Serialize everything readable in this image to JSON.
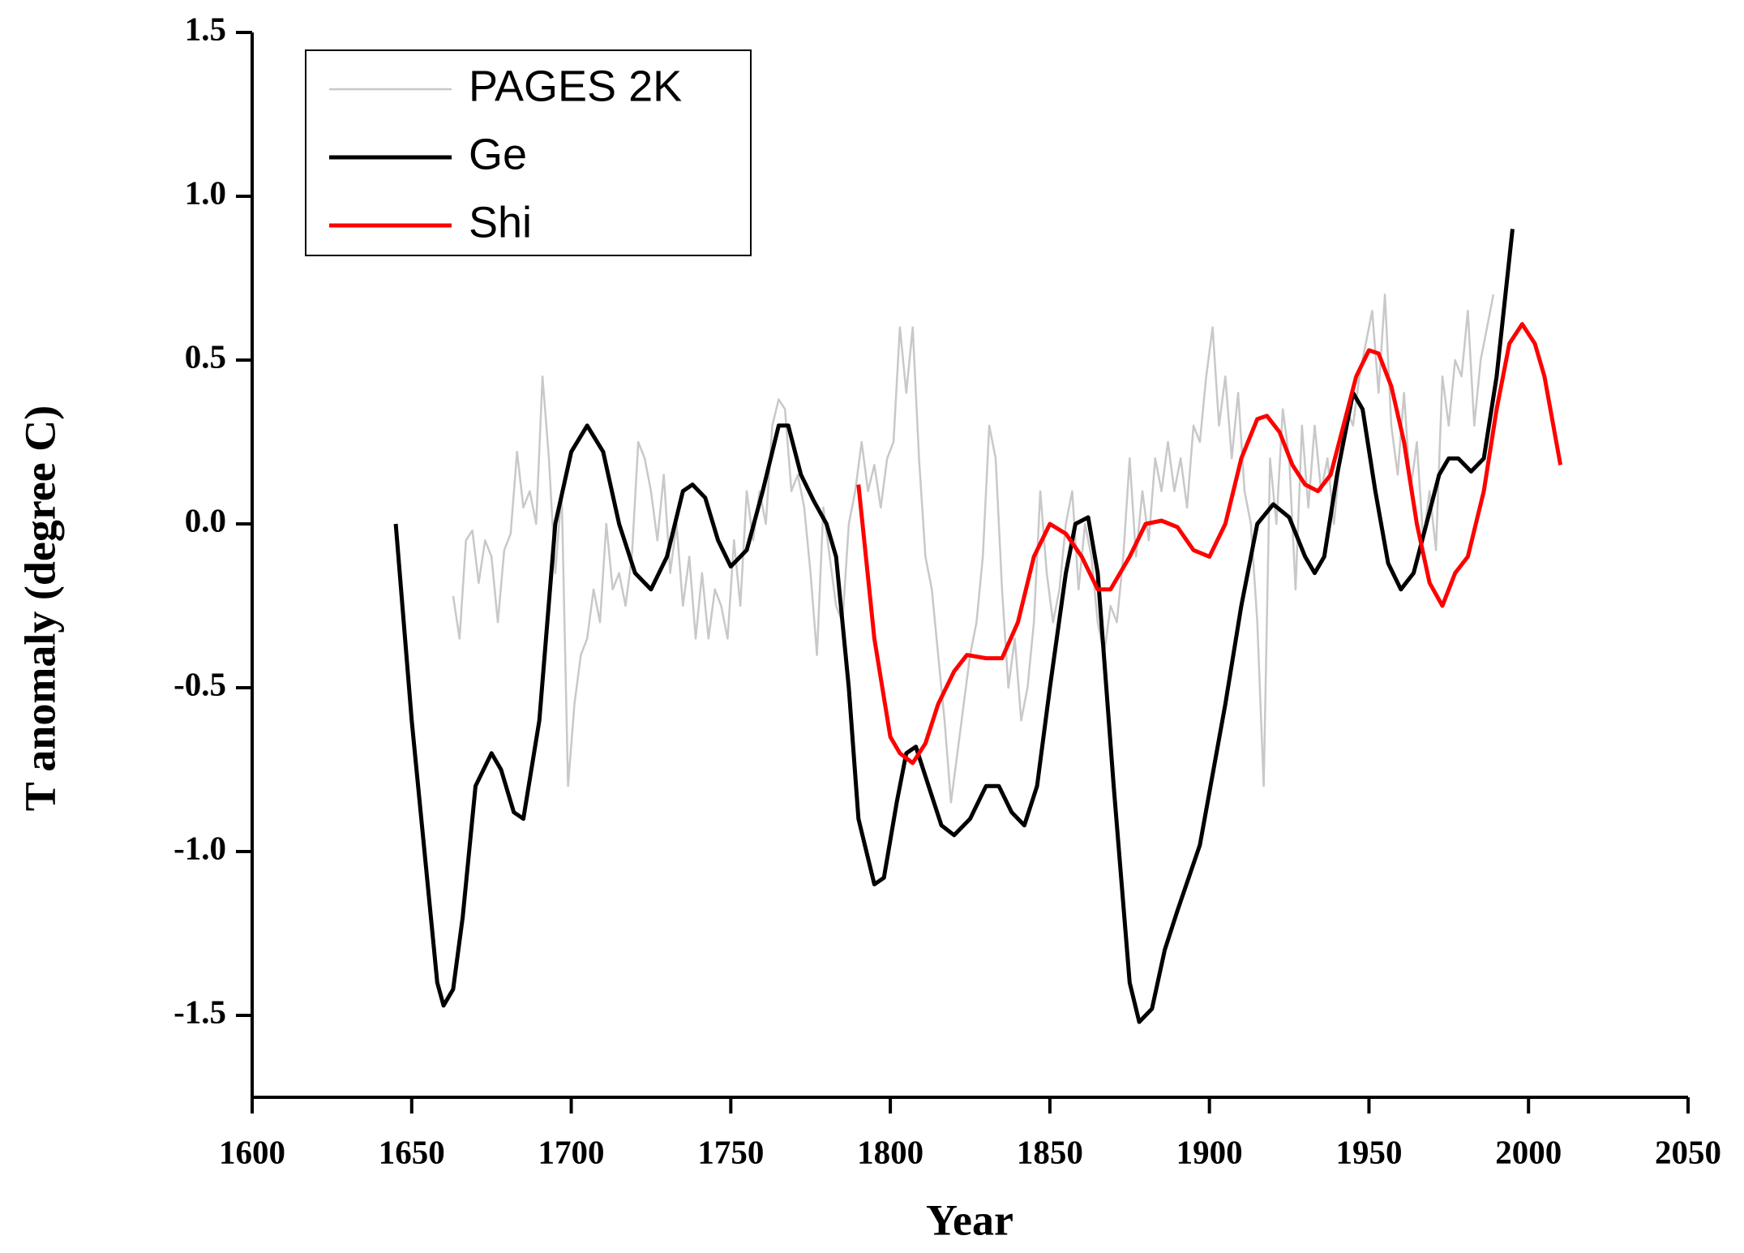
{
  "chart_data": {
    "type": "line",
    "xlabel": "Year",
    "ylabel": "T anomaly (degree C)",
    "xlim": [
      1600,
      2050
    ],
    "xticks": [
      1600,
      1650,
      1700,
      1750,
      1800,
      1850,
      1900,
      1950,
      2000,
      2050
    ],
    "ylim": [
      -1.75,
      1.5
    ],
    "yticks": [
      1.5,
      {
        "value": 1,
        "label": "1.0"
      },
      0.5,
      {
        "value": 0,
        "label": "0.0"
      },
      -0.5,
      {
        "value": -1,
        "label": "-1.0"
      },
      -1.5
    ],
    "legend": "upper left",
    "grid": false,
    "series": [
      {
        "name": "PAGES 2K",
        "color": "#c8c8c8",
        "x": [
          1663,
          1665,
          1667,
          1669,
          1671,
          1673,
          1675,
          1677,
          1679,
          1681,
          1683,
          1685,
          1687,
          1689,
          1691,
          1693,
          1695,
          1697,
          1699,
          1701,
          1703,
          1705,
          1707,
          1709,
          1711,
          1713,
          1715,
          1717,
          1719,
          1721,
          1723,
          1725,
          1727,
          1729,
          1731,
          1733,
          1735,
          1737,
          1739,
          1741,
          1743,
          1745,
          1747,
          1749,
          1751,
          1753,
          1755,
          1757,
          1759,
          1761,
          1763,
          1765,
          1767,
          1769,
          1771,
          1773,
          1775,
          1777,
          1779,
          1781,
          1783,
          1785,
          1787,
          1789,
          1791,
          1793,
          1795,
          1797,
          1799,
          1801,
          1803,
          1805,
          1807,
          1809,
          1811,
          1813,
          1815,
          1817,
          1819,
          1821,
          1823,
          1825,
          1827,
          1829,
          1831,
          1833,
          1835,
          1837,
          1839,
          1841,
          1843,
          1845,
          1847,
          1849,
          1851,
          1853,
          1855,
          1857,
          1859,
          1861,
          1863,
          1865,
          1867,
          1869,
          1871,
          1873,
          1875,
          1877,
          1879,
          1881,
          1883,
          1885,
          1887,
          1889,
          1891,
          1893,
          1895,
          1897,
          1899,
          1901,
          1903,
          1905,
          1907,
          1909,
          1911,
          1913,
          1915,
          1917,
          1919,
          1921,
          1923,
          1925,
          1927,
          1929,
          1931,
          1933,
          1935,
          1937,
          1939,
          1941,
          1943,
          1945,
          1947,
          1949,
          1951,
          1953,
          1955,
          1957,
          1959,
          1961,
          1963,
          1965,
          1967,
          1969,
          1971,
          1973,
          1975,
          1977,
          1979,
          1981,
          1983,
          1985,
          1987,
          1989
        ],
        "values": [
          -0.22,
          -0.35,
          -0.05,
          -0.02,
          -0.18,
          -0.05,
          -0.1,
          -0.3,
          -0.08,
          -0.03,
          0.22,
          0.05,
          0.1,
          0.0,
          0.45,
          0.2,
          -0.15,
          0.1,
          -0.8,
          -0.55,
          -0.4,
          -0.35,
          -0.2,
          -0.3,
          0.0,
          -0.2,
          -0.15,
          -0.25,
          -0.1,
          0.25,
          0.2,
          0.1,
          -0.05,
          0.15,
          -0.15,
          0.0,
          -0.25,
          -0.1,
          -0.35,
          -0.15,
          -0.35,
          -0.2,
          -0.25,
          -0.35,
          -0.05,
          -0.25,
          0.1,
          -0.05,
          0.1,
          0.0,
          0.3,
          0.38,
          0.35,
          0.1,
          0.15,
          0.05,
          -0.15,
          -0.4,
          0.05,
          -0.1,
          -0.25,
          -0.3,
          0.0,
          0.1,
          0.25,
          0.1,
          0.18,
          0.05,
          0.2,
          0.25,
          0.6,
          0.4,
          0.6,
          0.2,
          -0.1,
          -0.2,
          -0.4,
          -0.6,
          -0.85,
          -0.7,
          -0.55,
          -0.4,
          -0.3,
          -0.1,
          0.3,
          0.2,
          -0.2,
          -0.5,
          -0.35,
          -0.6,
          -0.5,
          -0.3,
          0.1,
          -0.15,
          -0.3,
          -0.2,
          0.0,
          0.1,
          -0.2,
          0.0,
          -0.1,
          -0.3,
          -0.4,
          -0.25,
          -0.3,
          -0.1,
          0.2,
          -0.1,
          0.1,
          -0.05,
          0.2,
          0.1,
          0.25,
          0.1,
          0.2,
          0.05,
          0.3,
          0.25,
          0.45,
          0.6,
          0.3,
          0.45,
          0.2,
          0.4,
          0.1,
          0.0,
          -0.3,
          -0.8,
          0.2,
          0.0,
          0.35,
          0.2,
          -0.2,
          0.3,
          0.05,
          0.3,
          0.1,
          0.2,
          0.0,
          0.2,
          0.35,
          0.3,
          0.45,
          0.55,
          0.65,
          0.4,
          0.7,
          0.3,
          0.15,
          0.4,
          0.1,
          0.25,
          -0.05,
          0.1,
          -0.08,
          0.45,
          0.3,
          0.5,
          0.45,
          0.65,
          0.3,
          0.5,
          0.6,
          0.7
        ]
      },
      {
        "name": "Ge",
        "color": "#000000",
        "x": [
          1645,
          1650,
          1655,
          1658,
          1660,
          1663,
          1666,
          1670,
          1675,
          1678,
          1682,
          1685,
          1690,
          1695,
          1700,
          1705,
          1710,
          1715,
          1720,
          1725,
          1730,
          1735,
          1738,
          1742,
          1746,
          1750,
          1755,
          1760,
          1765,
          1768,
          1772,
          1776,
          1780,
          1783,
          1787,
          1790,
          1795,
          1798,
          1802,
          1805,
          1808,
          1812,
          1816,
          1820,
          1825,
          1830,
          1834,
          1838,
          1842,
          1846,
          1850,
          1855,
          1858,
          1862,
          1865,
          1870,
          1875,
          1878,
          1882,
          1886,
          1890,
          1897,
          1905,
          1910,
          1915,
          1920,
          1925,
          1930,
          1933,
          1936,
          1940,
          1945,
          1948,
          1952,
          1956,
          1960,
          1964,
          1968,
          1972,
          1975,
          1978,
          1982,
          1986,
          1990,
          1995
        ],
        "values": [
          0.0,
          -0.6,
          -1.1,
          -1.4,
          -1.47,
          -1.42,
          -1.2,
          -0.8,
          -0.7,
          -0.75,
          -0.88,
          -0.9,
          -0.6,
          0.0,
          0.22,
          0.3,
          0.22,
          0.0,
          -0.15,
          -0.2,
          -0.1,
          0.1,
          0.12,
          0.08,
          -0.05,
          -0.13,
          -0.08,
          0.1,
          0.3,
          0.3,
          0.15,
          0.07,
          0.0,
          -0.1,
          -0.5,
          -0.9,
          -1.1,
          -1.08,
          -0.85,
          -0.7,
          -0.68,
          -0.8,
          -0.92,
          -0.95,
          -0.9,
          -0.8,
          -0.8,
          -0.88,
          -0.92,
          -0.8,
          -0.5,
          -0.15,
          0.0,
          0.02,
          -0.15,
          -0.8,
          -1.4,
          -1.52,
          -1.48,
          -1.3,
          -1.18,
          -0.98,
          -0.55,
          -0.25,
          0.0,
          0.06,
          0.02,
          -0.1,
          -0.15,
          -0.1,
          0.15,
          0.4,
          0.35,
          0.1,
          -0.12,
          -0.2,
          -0.15,
          0.0,
          0.15,
          0.2,
          0.2,
          0.16,
          0.2,
          0.45,
          0.9
        ]
      },
      {
        "name": "Shi",
        "color": "#ff0000",
        "x": [
          1790,
          1795,
          1800,
          1803,
          1807,
          1811,
          1815,
          1820,
          1824,
          1830,
          1835,
          1840,
          1845,
          1850,
          1855,
          1860,
          1865,
          1869,
          1875,
          1880,
          1885,
          1890,
          1895,
          1900,
          1905,
          1910,
          1915,
          1918,
          1922,
          1926,
          1930,
          1934,
          1938,
          1942,
          1946,
          1950,
          1953,
          1957,
          1961,
          1965,
          1969,
          1973,
          1977,
          1981,
          1986,
          1990,
          1994,
          1998,
          2002,
          2005,
          2010
        ],
        "values": [
          0.12,
          -0.35,
          -0.65,
          -0.7,
          -0.73,
          -0.67,
          -0.55,
          -0.45,
          -0.4,
          -0.41,
          -0.41,
          -0.3,
          -0.1,
          0.0,
          -0.03,
          -0.1,
          -0.2,
          -0.2,
          -0.1,
          0.0,
          0.01,
          -0.01,
          -0.08,
          -0.1,
          0.0,
          0.2,
          0.32,
          0.33,
          0.28,
          0.18,
          0.12,
          0.1,
          0.15,
          0.3,
          0.45,
          0.53,
          0.52,
          0.42,
          0.25,
          0.0,
          -0.18,
          -0.25,
          -0.15,
          -0.1,
          0.1,
          0.35,
          0.55,
          0.61,
          0.55,
          0.45,
          0.18
        ]
      }
    ]
  }
}
